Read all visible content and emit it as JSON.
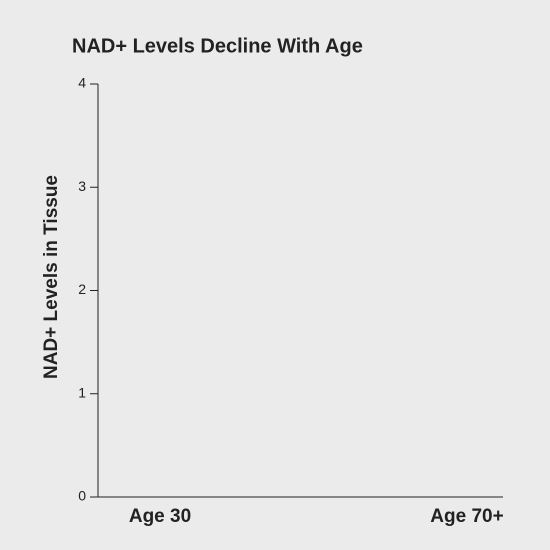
{
  "chart_data": {
    "type": "bar",
    "title": "NAD+ Levels Decline With Age",
    "ylabel": "NAD+ Levels in Tissue",
    "categories": [
      "Age 30",
      "Age 70+"
    ],
    "ylim": [
      0,
      4
    ],
    "yticks": [
      0,
      1,
      2,
      3,
      4
    ]
  }
}
